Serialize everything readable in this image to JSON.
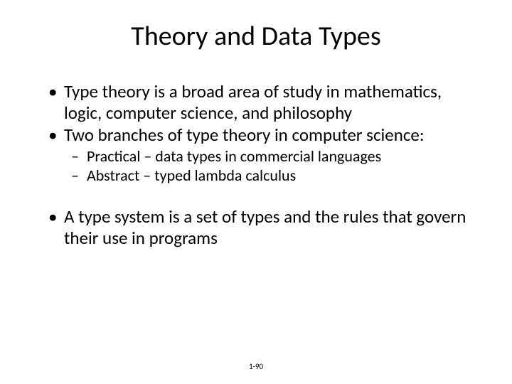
{
  "title": "Theory and Data Types",
  "bullets": {
    "b1": "Type theory is a broad area of study in mathematics, logic, computer science, and philosophy",
    "b2": "Two branches of type theory in computer science:",
    "b2_sub1": "Practical – data types in commercial languages",
    "b2_sub2": "Abstract – typed lambda calculus",
    "b3": "A type system is a set of types and the rules that govern their use in programs"
  },
  "page_number": "1-90",
  "colors": {
    "background": "#ffffff",
    "text": "#000000"
  },
  "typography": {
    "title_fontsize": 38,
    "body_fontsize": 25,
    "sub_fontsize": 22,
    "pagenum_fontsize": 11,
    "font_family": "Calibri"
  }
}
